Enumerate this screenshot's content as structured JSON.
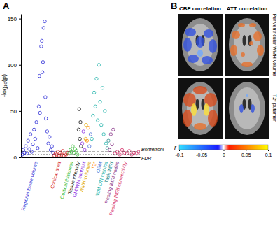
{
  "chart_data": [
    {
      "type": "scatter",
      "title": "A",
      "y_label": "-log₁₀(p)",
      "xlim": [
        0,
        100
      ],
      "ylim": [
        0,
        155
      ],
      "yticks": [
        0,
        50,
        100,
        150
      ],
      "tick_labels": "y",
      "grid": false,
      "marker": "open circle",
      "thresholds": [
        {
          "label": "Bonferroni",
          "value": 6
        },
        {
          "label": "FDR",
          "value": 3
        }
      ],
      "series": [
        {
          "name": "Regional tissue volume",
          "color": "#2b2bd6",
          "x": [
            1,
            2,
            3,
            4,
            5,
            6,
            7,
            8,
            9,
            10,
            11,
            12,
            13,
            14,
            15,
            15.5,
            16,
            17,
            17.5,
            18,
            18.5,
            19,
            20,
            20.5,
            21,
            22,
            23,
            24,
            25,
            26,
            27
          ],
          "values": [
            3,
            8,
            5,
            12,
            4,
            18,
            9,
            25,
            6,
            14,
            30,
            20,
            38,
            10,
            55,
            88,
            48,
            120,
            126,
            92,
            103,
            140,
            147,
            65,
            42,
            28,
            15,
            22,
            8,
            12,
            5
          ]
        },
        {
          "name": "Cortical area",
          "color": "#d62a2a",
          "x": [
            28,
            29,
            30,
            31,
            32,
            33,
            34,
            35,
            36,
            37,
            38,
            39
          ],
          "values": [
            2,
            4,
            3,
            6,
            2,
            5,
            3,
            7,
            2,
            4,
            3,
            5
          ]
        },
        {
          "name": "Cortical thickness",
          "color": "#3bbd3b",
          "x": [
            40.5,
            41.5,
            42.5,
            43.5,
            44.5,
            45.5,
            46.5,
            47.5
          ],
          "values": [
            4,
            8,
            6,
            12,
            5,
            9,
            7,
            3
          ]
        },
        {
          "name": "Tissue intensity",
          "color": "#111111",
          "x": [
            48.5,
            49,
            49.5,
            50,
            50.5
          ],
          "values": [
            30,
            52,
            20,
            38,
            12
          ]
        },
        {
          "name": "GM/WM contrast",
          "color": "#8a2be2",
          "x": [
            51.5,
            52.5,
            53.5
          ],
          "values": [
            15,
            28,
            8
          ]
        },
        {
          "name": "WMH volumes",
          "color": "#e0a800",
          "x": [
            54.3,
            54.7
          ],
          "values": [
            20,
            35
          ]
        },
        {
          "name": "T2*",
          "color": "#ff8c00",
          "x": [
            55.5,
            56.5
          ],
          "values": [
            18,
            32
          ]
        },
        {
          "name": "QSM",
          "color": "#4a6fd6",
          "x": [
            57.5,
            58.5
          ],
          "values": [
            12,
            25
          ]
        },
        {
          "name": "WM DTI metrics",
          "color": "#20b2aa",
          "x": [
            59.5,
            60.5,
            61.5,
            62.5,
            63.5,
            64.5,
            65.5,
            66.5,
            67.5,
            68.5,
            69.5,
            70.5,
            71.5
          ],
          "values": [
            20,
            45,
            70,
            55,
            85,
            40,
            100,
            60,
            35,
            75,
            25,
            50,
            15
          ]
        },
        {
          "name": "Task fMRI",
          "color": "#2e8b8b",
          "x": [
            72.5,
            73.5
          ],
          "values": [
            10,
            18
          ]
        },
        {
          "name": "Resting fMRI nodes",
          "color": "#8b3a8b",
          "x": [
            74.5,
            75.5,
            76.5,
            77.5
          ],
          "values": [
            8,
            25,
            14,
            30
          ]
        },
        {
          "name": "Resting fMRI connectivity",
          "color": "#d6336c",
          "x": [
            79,
            81,
            83,
            85,
            87,
            89,
            91,
            93,
            95,
            97,
            99
          ],
          "values": [
            4,
            6,
            3,
            8,
            5,
            4,
            7,
            3,
            5,
            4,
            6
          ]
        }
      ]
    },
    {
      "type": "image",
      "title": "B",
      "columns": [
        "CBF correlation",
        "ATT correlation"
      ],
      "rows": [
        "Periventricular WMH volume",
        "T2* putamen"
      ],
      "colorbar": {
        "label": "r",
        "lim": [
          -0.1,
          0.1
        ],
        "ticks": [
          -0.1,
          -0.05,
          0,
          0.05,
          0.1
        ]
      }
    }
  ]
}
